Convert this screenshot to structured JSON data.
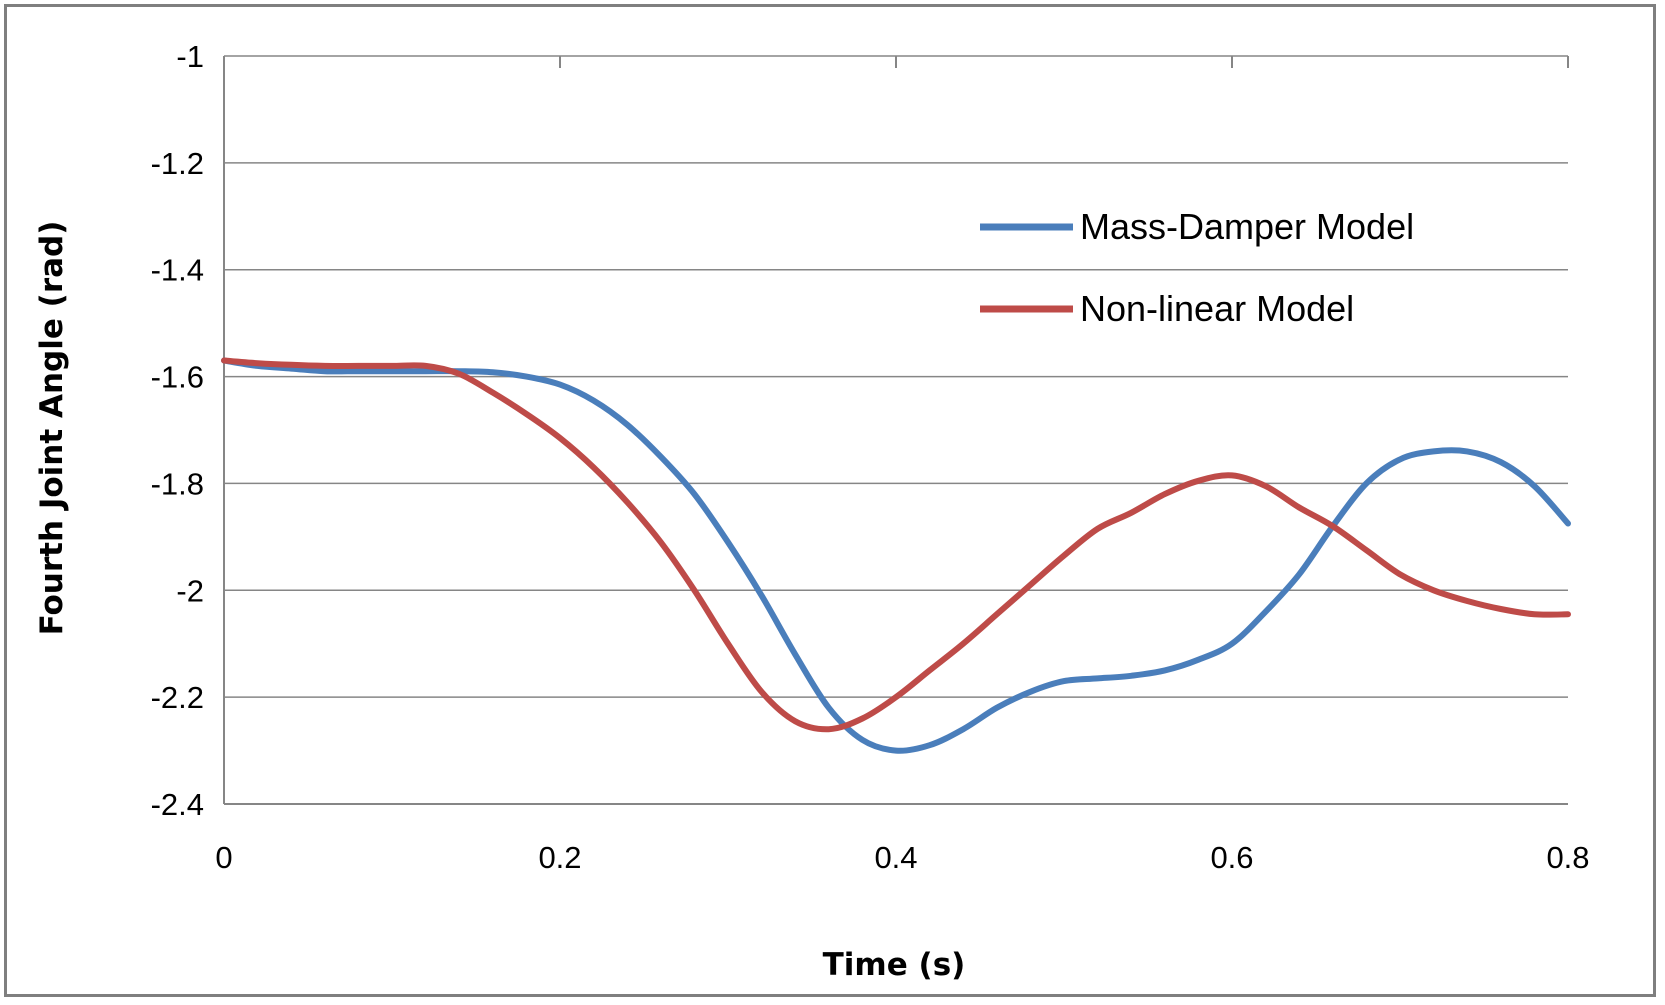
{
  "chart_data": {
    "type": "line",
    "title": "",
    "xlabel": "Time (s)",
    "ylabel": "Fourth Joint Angle (rad)",
    "xlim": [
      0,
      0.8
    ],
    "ylim": [
      -2.4,
      -1.0
    ],
    "xticks": [
      0,
      0.2,
      0.4,
      0.6,
      0.8
    ],
    "xtick_labels": [
      "0",
      "0.2",
      "0.4",
      "0.6",
      "0.8"
    ],
    "yticks": [
      -1.0,
      -1.2,
      -1.4,
      -1.6,
      -1.8,
      -2.0,
      -2.2,
      -2.4
    ],
    "ytick_labels": [
      "-1",
      "-1.2",
      "-1.4",
      "-1.6",
      "-1.8",
      "-2",
      "-2.2",
      "-2.4"
    ],
    "grid": "horizontal",
    "legend_position": "upper-right",
    "series": [
      {
        "name": "Mass-Damper Model",
        "color": "#4a7ebb",
        "x": [
          0,
          0.02,
          0.04,
          0.06,
          0.08,
          0.1,
          0.12,
          0.14,
          0.16,
          0.18,
          0.2,
          0.22,
          0.24,
          0.26,
          0.28,
          0.3,
          0.32,
          0.34,
          0.36,
          0.38,
          0.4,
          0.42,
          0.44,
          0.46,
          0.48,
          0.5,
          0.52,
          0.54,
          0.56,
          0.58,
          0.6,
          0.62,
          0.64,
          0.66,
          0.68,
          0.7,
          0.72,
          0.74,
          0.76,
          0.78,
          0.8
        ],
        "y": [
          -1.57,
          -1.58,
          -1.585,
          -1.59,
          -1.59,
          -1.59,
          -1.59,
          -1.59,
          -1.592,
          -1.6,
          -1.615,
          -1.645,
          -1.69,
          -1.75,
          -1.82,
          -1.91,
          -2.01,
          -2.12,
          -2.22,
          -2.28,
          -2.3,
          -2.29,
          -2.26,
          -2.22,
          -2.19,
          -2.17,
          -2.165,
          -2.16,
          -2.15,
          -2.13,
          -2.1,
          -2.04,
          -1.97,
          -1.88,
          -1.8,
          -1.755,
          -1.74,
          -1.74,
          -1.76,
          -1.805,
          -1.875
        ]
      },
      {
        "name": "Non-linear Model",
        "color": "#be4b48",
        "x": [
          0,
          0.02,
          0.04,
          0.06,
          0.08,
          0.1,
          0.12,
          0.14,
          0.16,
          0.18,
          0.2,
          0.22,
          0.24,
          0.26,
          0.28,
          0.3,
          0.32,
          0.34,
          0.36,
          0.38,
          0.4,
          0.42,
          0.44,
          0.46,
          0.48,
          0.5,
          0.52,
          0.54,
          0.56,
          0.58,
          0.6,
          0.62,
          0.64,
          0.66,
          0.68,
          0.7,
          0.72,
          0.74,
          0.76,
          0.78,
          0.8
        ],
        "y": [
          -1.57,
          -1.575,
          -1.578,
          -1.58,
          -1.58,
          -1.58,
          -1.58,
          -1.595,
          -1.63,
          -1.67,
          -1.715,
          -1.77,
          -1.835,
          -1.91,
          -2.0,
          -2.1,
          -2.19,
          -2.245,
          -2.26,
          -2.24,
          -2.2,
          -2.15,
          -2.1,
          -2.045,
          -1.99,
          -1.935,
          -1.885,
          -1.855,
          -1.82,
          -1.795,
          -1.785,
          -1.805,
          -1.845,
          -1.88,
          -1.925,
          -1.97,
          -2.0,
          -2.02,
          -2.035,
          -2.045,
          -2.045
        ]
      }
    ]
  }
}
